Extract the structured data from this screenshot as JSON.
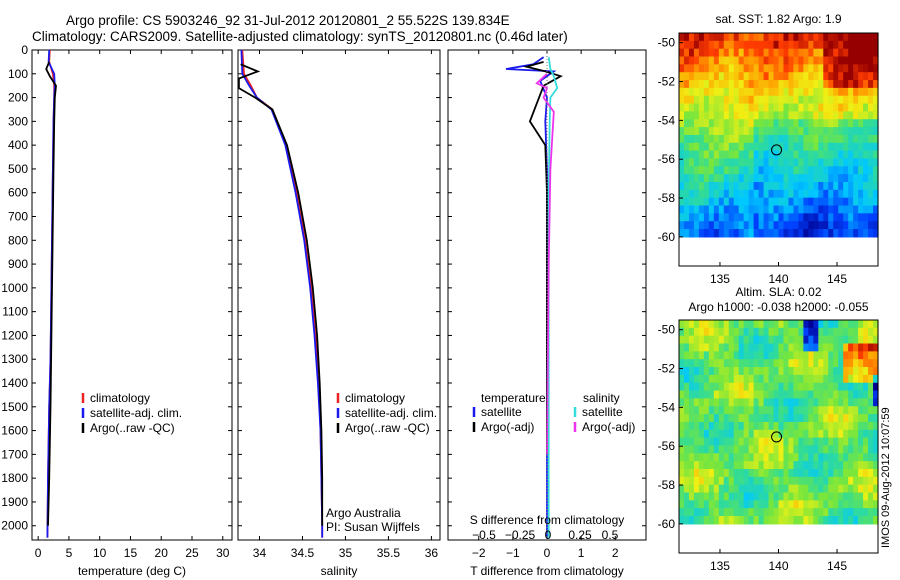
{
  "header": {
    "line1": "Argo profile: CS 5903246_92 31-Jul-2012 20120801_2 55.522S 139.834E",
    "line2": "Climatology: CARS2009. Satellite-adjusted climatology: synTS_20120801.nc (0.46d later)"
  },
  "watermark": "IMOS 09-Aug-2012 10:07:59",
  "colors": {
    "climatology": "#ee2222",
    "satellite": "#1a1aee",
    "argo": "#000000",
    "sal_satellite": "#33dddd",
    "sal_argo": "#ee33ee"
  },
  "chart_data": [
    {
      "type": "line",
      "panel": "temperature",
      "xlabel": "temperature (deg C)",
      "ylabel": "depth",
      "xlim": [
        -1,
        31.5
      ],
      "ylim": [
        2060,
        0
      ],
      "xticks": [
        0,
        5,
        10,
        15,
        20,
        25,
        30
      ],
      "xtick_labels": [
        "0",
        "5",
        "10",
        "15",
        "20",
        "25",
        "30"
      ],
      "yticks": [
        0,
        100,
        200,
        300,
        400,
        500,
        600,
        700,
        800,
        900,
        1000,
        1100,
        1200,
        1300,
        1400,
        1500,
        1600,
        1700,
        1800,
        1900,
        2000
      ],
      "ytick_labels": [
        "0",
        "100",
        "200",
        "300",
        "400",
        "500",
        "600",
        "700",
        "800",
        "900",
        "1000",
        "1100",
        "1200",
        "1300",
        "1400",
        "1500",
        "1600",
        "1700",
        "1800",
        "1900",
        "2000"
      ],
      "legend": [
        "climatology",
        "satellite-adj. clim.",
        "Argo(..raw -QC)"
      ],
      "legend_position": "lower-right",
      "series": [
        {
          "name": "climatology",
          "color": "red",
          "x": [
            1.9,
            1.8,
            2.4,
            2.6,
            2.6,
            2.5,
            2.4,
            2.3,
            2.2,
            2.1,
            2.0,
            1.8,
            1.6,
            1.5
          ],
          "y": [
            0,
            50,
            100,
            150,
            200,
            300,
            500,
            700,
            900,
            1100,
            1300,
            1500,
            1800,
            2050
          ]
        },
        {
          "name": "satellite-adj. clim.",
          "color": "blue",
          "x": [
            1.8,
            1.7,
            2.6,
            2.7,
            2.6,
            2.5,
            2.4,
            2.3,
            2.2,
            2.1,
            2.0,
            1.8,
            1.6,
            1.5
          ],
          "y": [
            0,
            50,
            100,
            150,
            200,
            300,
            500,
            700,
            900,
            1100,
            1300,
            1500,
            1800,
            2050
          ]
        },
        {
          "name": "Argo",
          "color": "black",
          "x": [
            1.8,
            1.3,
            1.9,
            2.9,
            2.7,
            2.6,
            2.5,
            2.4,
            2.3,
            2.2,
            2.1,
            2.0,
            1.8,
            1.6
          ],
          "y": [
            50,
            80,
            110,
            150,
            200,
            300,
            500,
            700,
            900,
            1100,
            1300,
            1500,
            1800,
            2000
          ]
        }
      ]
    },
    {
      "type": "line",
      "panel": "salinity",
      "xlabel": "salinity",
      "xlim": [
        33.75,
        36.1
      ],
      "ylim": [
        2060,
        0
      ],
      "xticks": [
        34,
        34.5,
        35,
        35.5,
        36
      ],
      "xtick_labels": [
        "34",
        "34.5",
        "35",
        "35.5",
        "36"
      ],
      "legend": [
        "climatology",
        "satellite-adj. clim.",
        "Argo(..raw -QC)"
      ],
      "legend_position": "lower-right",
      "annotation": [
        "Argo Australia",
        "PI: Susan Wijffels"
      ],
      "series": [
        {
          "name": "climatology",
          "color": "red",
          "x": [
            33.8,
            33.82,
            33.9,
            33.97,
            34.15,
            34.31,
            34.43,
            34.53,
            34.6,
            34.65,
            34.69,
            34.71,
            34.72,
            34.73,
            34.73
          ],
          "y": [
            0,
            100,
            150,
            200,
            250,
            400,
            600,
            800,
            1000,
            1200,
            1400,
            1600,
            1800,
            2000,
            2050
          ]
        },
        {
          "name": "satellite-adj. clim.",
          "color": "blue",
          "x": [
            33.79,
            33.8,
            33.88,
            33.97,
            34.14,
            34.3,
            34.42,
            34.52,
            34.59,
            34.64,
            34.68,
            34.71,
            34.72,
            34.73,
            34.73
          ],
          "y": [
            0,
            100,
            150,
            200,
            250,
            400,
            600,
            800,
            1000,
            1200,
            1400,
            1600,
            1800,
            2000,
            2050
          ]
        },
        {
          "name": "Argo",
          "color": "black",
          "x": [
            33.78,
            33.98,
            33.76,
            33.76,
            33.95,
            34.15,
            34.32,
            34.45,
            34.55,
            34.62,
            34.67,
            34.7,
            34.72,
            34.73,
            34.73
          ],
          "y": [
            60,
            90,
            120,
            160,
            200,
            250,
            400,
            600,
            800,
            1000,
            1200,
            1400,
            1600,
            1800,
            2000
          ]
        }
      ]
    },
    {
      "type": "line",
      "panel": "difference",
      "xlabel": "T difference from climatology",
      "xlabel_top": "S difference from climatology",
      "xlim": [
        -2.9,
        2.9
      ],
      "ylim": [
        2060,
        0
      ],
      "xticks": [
        -2,
        -1,
        0,
        1,
        2
      ],
      "xtick_labels": [
        "−2",
        "−1",
        "0",
        "1",
        "2"
      ],
      "xticks_top_labels": [
        "−0.5",
        "−0.25",
        "0",
        "0.25",
        "0.5"
      ],
      "legend": [
        "temperature",
        "satellite",
        "Argo(-adj)",
        "salinity",
        "satellite",
        "Argo(-adj)"
      ],
      "legend_position": "lower-right",
      "series": [
        {
          "name": "T satellite",
          "color": "blue",
          "x": [
            -0.1,
            -0.4,
            -1.2,
            0.2,
            -0.2,
            0.0,
            -0.05,
            0.0,
            0.0,
            0.0,
            0.0
          ],
          "y": [
            30,
            60,
            80,
            90,
            130,
            200,
            300,
            500,
            800,
            1200,
            2050
          ]
        },
        {
          "name": "T Argo",
          "color": "black",
          "x": [
            -0.1,
            -0.6,
            -0.05,
            0.4,
            -0.1,
            -0.5,
            -0.05,
            0.0,
            0.0,
            0.0
          ],
          "y": [
            50,
            70,
            90,
            110,
            150,
            300,
            400,
            600,
            1000,
            1700
          ]
        },
        {
          "name": "S satellite",
          "color": "cyan",
          "x": [
            0.05,
            0.1,
            0.2,
            0.3,
            0.1,
            0.08,
            0.05,
            0.05,
            0.05,
            0.05
          ],
          "y": [
            30,
            80,
            110,
            160,
            200,
            300,
            600,
            1000,
            1500,
            2050
          ]
        },
        {
          "name": "S Argo",
          "color": "magenta",
          "x": [
            0.0,
            -0.3,
            0.0,
            -0.1,
            0.2,
            0.1,
            0.05,
            0.0
          ],
          "y": [
            100,
            140,
            160,
            200,
            260,
            500,
            900,
            1700
          ]
        }
      ]
    },
    {
      "type": "heatmap",
      "panel": "sst_map",
      "title": "sat. SST: 1.82 Argo: 1.9",
      "xlim": [
        131.5,
        148.5
      ],
      "ylim": [
        -61.5,
        -49.5
      ],
      "data_extent_lat": [
        -60,
        -49.5
      ],
      "xticks": [
        135,
        140,
        145
      ],
      "xtick_labels": [
        "135",
        "140",
        "145"
      ],
      "yticks": [
        -50,
        -52,
        -54,
        -56,
        -58,
        -60
      ],
      "ytick_labels": [
        "-50",
        "-52",
        "-54",
        "-56",
        "-58",
        "-60"
      ],
      "marker": {
        "lon": 139.834,
        "lat": -55.522
      }
    },
    {
      "type": "heatmap",
      "panel": "sla_map",
      "title": "Altim. SLA: 0.02",
      "subtitle": "Argo h1000: -0.038 h2000: -0.055",
      "xlim": [
        131.5,
        148.5
      ],
      "ylim": [
        -61.5,
        -49.5
      ],
      "data_extent_lat": [
        -60,
        -49.5
      ],
      "xticks": [
        135,
        140,
        145
      ],
      "xtick_labels": [
        "135",
        "140",
        "145"
      ],
      "yticks": [
        -50,
        -52,
        -54,
        -56,
        -58,
        -60
      ],
      "ytick_labels": [
        "-50",
        "-52",
        "-54",
        "-56",
        "-58",
        "-60"
      ],
      "marker": {
        "lon": 139.834,
        "lat": -55.522
      }
    }
  ]
}
